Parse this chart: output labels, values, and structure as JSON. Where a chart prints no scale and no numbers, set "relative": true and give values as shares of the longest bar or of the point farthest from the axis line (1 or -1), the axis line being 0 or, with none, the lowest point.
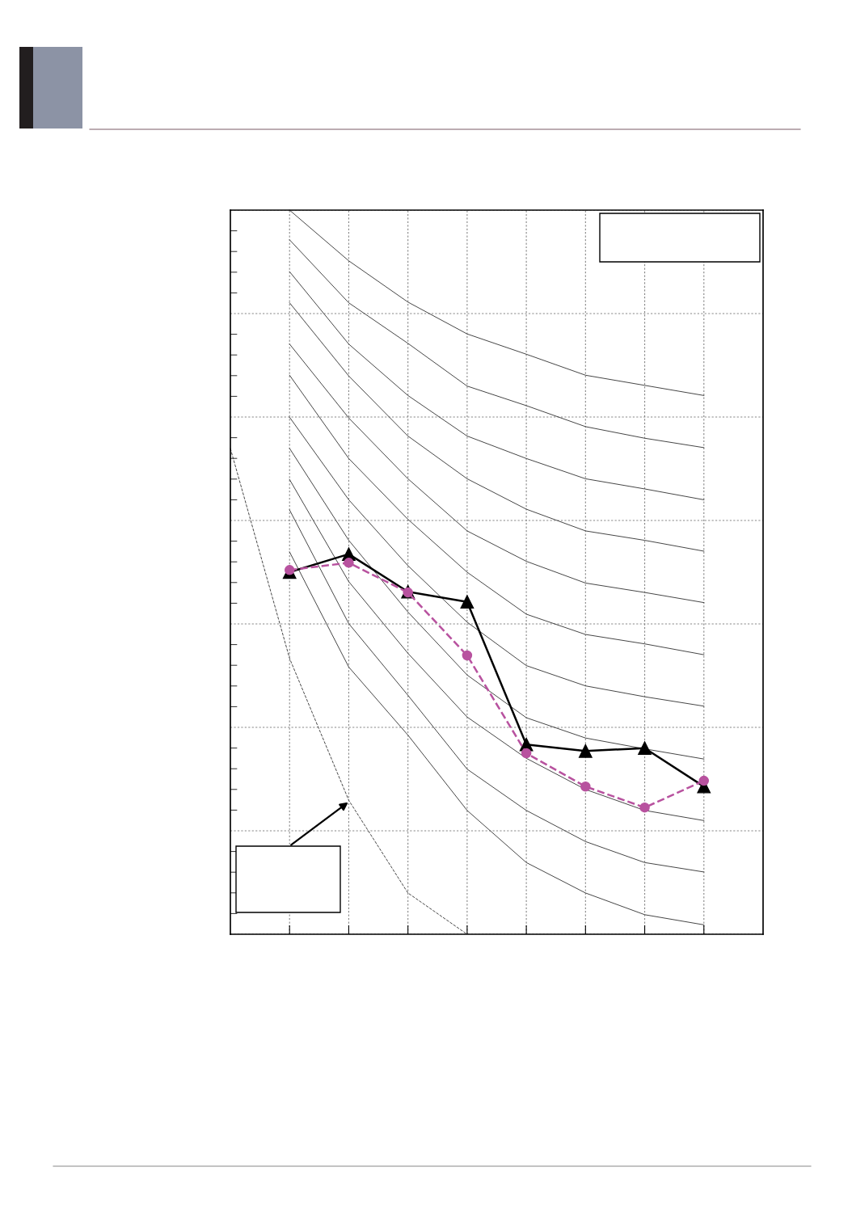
{
  "chart_data": {
    "type": "line",
    "relative": true,
    "grid": true,
    "tick_labels": false,
    "categories": [
      null,
      null,
      null,
      null,
      null,
      null,
      null,
      null,
      null
    ],
    "series": [
      {
        "color": "#404040",
        "marker": "none",
        "line_style": "solid",
        "values": [
          null,
          1.0,
          0.93,
          0.873,
          0.829,
          0.801,
          0.772,
          0.758,
          0.744
        ]
      },
      {
        "color": "#404040",
        "marker": "none",
        "line_style": "solid",
        "values": [
          null,
          0.959,
          0.872,
          0.816,
          0.757,
          0.73,
          0.701,
          0.685,
          0.672
        ]
      },
      {
        "color": "#404040",
        "marker": "none",
        "line_style": "solid",
        "values": [
          null,
          0.915,
          0.815,
          0.744,
          0.688,
          0.657,
          0.629,
          0.615,
          0.6
        ]
      },
      {
        "color": "#404040",
        "marker": "none",
        "line_style": "solid",
        "values": [
          null,
          0.872,
          0.771,
          0.688,
          0.629,
          0.587,
          0.557,
          0.544,
          0.529
        ]
      },
      {
        "color": "#404040",
        "marker": "none",
        "line_style": "solid",
        "values": [
          null,
          0.815,
          0.713,
          0.629,
          0.557,
          0.515,
          0.485,
          0.472,
          0.458
        ]
      },
      {
        "color": "#404040",
        "marker": "none",
        "line_style": "solid",
        "values": [
          null,
          0.772,
          0.657,
          0.573,
          0.5,
          0.442,
          0.414,
          0.401,
          0.386
        ]
      },
      {
        "color": "#404040",
        "marker": "none",
        "line_style": "solid",
        "values": [
          null,
          0.714,
          0.6,
          0.509,
          0.431,
          0.371,
          0.343,
          0.328,
          0.315
        ]
      },
      {
        "color": "#404040",
        "marker": "none",
        "line_style": "solid",
        "values": [
          null,
          0.671,
          0.544,
          0.445,
          0.358,
          0.299,
          0.271,
          0.256,
          0.242
        ]
      },
      {
        "color": "#404040",
        "marker": "none",
        "line_style": "solid",
        "values": [
          null,
          0.628,
          0.487,
          0.388,
          0.3,
          0.243,
          0.2,
          0.171,
          0.157
        ]
      },
      {
        "color": "#404040",
        "marker": "none",
        "line_style": "solid",
        "values": [
          null,
          0.586,
          0.429,
          0.33,
          0.228,
          0.171,
          0.128,
          0.099,
          0.086
        ]
      },
      {
        "color": "#404040",
        "marker": "none",
        "line_style": "solid",
        "values": [
          null,
          0.528,
          0.369,
          0.275,
          0.171,
          0.099,
          0.057,
          0.027,
          0.013
        ]
      },
      {
        "color": "#404040",
        "marker": "none",
        "line_style": "dashed",
        "values": [
          0.671,
          0.381,
          0.185,
          0.057,
          0,
          null,
          null,
          null,
          null
        ]
      },
      {
        "color": "#000000",
        "marker": "triangle",
        "line_style": "solid",
        "values": [
          null,
          0.5,
          0.525,
          0.473,
          0.459,
          0.262,
          0.253,
          0.257,
          0.204
        ]
      },
      {
        "color": "#b8529f",
        "marker": "circle",
        "line_style": "dashed",
        "values": [
          null,
          0.503,
          0.513,
          0.472,
          0.385,
          0.25,
          0.204,
          0.175,
          0.212
        ]
      }
    ]
  }
}
